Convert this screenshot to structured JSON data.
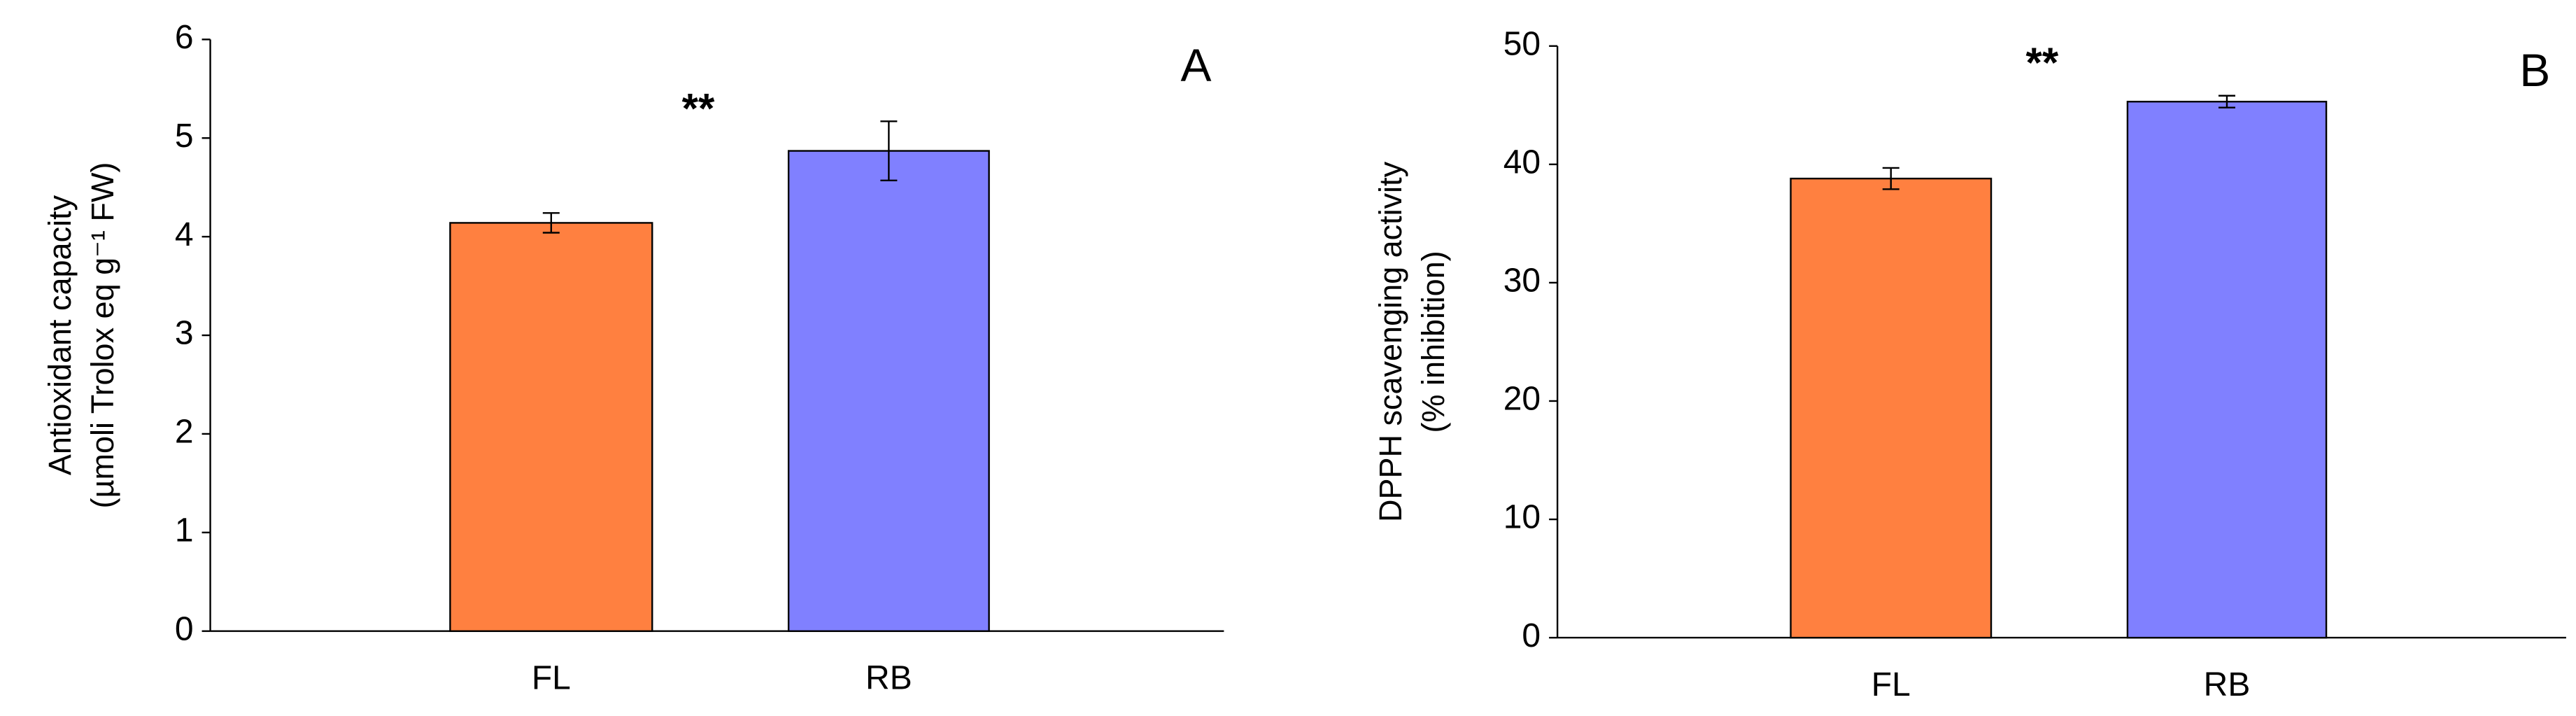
{
  "chart_data": [
    {
      "type": "bar",
      "panel": "A",
      "annotation": "**",
      "ylabel": [
        "Antioxidant capacity",
        "(µmoli Trolox eq g⁻¹ FW)"
      ],
      "categories": [
        "FL",
        "RB"
      ],
      "values": [
        4.14,
        4.87
      ],
      "errors": [
        0.1,
        0.3
      ],
      "colors": [
        "#ff8040",
        "#8080ff"
      ],
      "ylim": [
        0,
        6
      ],
      "yticks": [
        0,
        1,
        2,
        3,
        4,
        5,
        6
      ]
    },
    {
      "type": "bar",
      "panel": "B",
      "annotation": "**",
      "ylabel": [
        "DPPH scavenging activity",
        "(% inhibition)"
      ],
      "categories": [
        "FL",
        "RB"
      ],
      "values": [
        38.8,
        45.3
      ],
      "errors": [
        0.9,
        0.5
      ],
      "colors": [
        "#ff8040",
        "#8080ff"
      ],
      "ylim": [
        0,
        50
      ],
      "yticks": [
        0,
        10,
        20,
        30,
        40,
        50
      ]
    }
  ]
}
